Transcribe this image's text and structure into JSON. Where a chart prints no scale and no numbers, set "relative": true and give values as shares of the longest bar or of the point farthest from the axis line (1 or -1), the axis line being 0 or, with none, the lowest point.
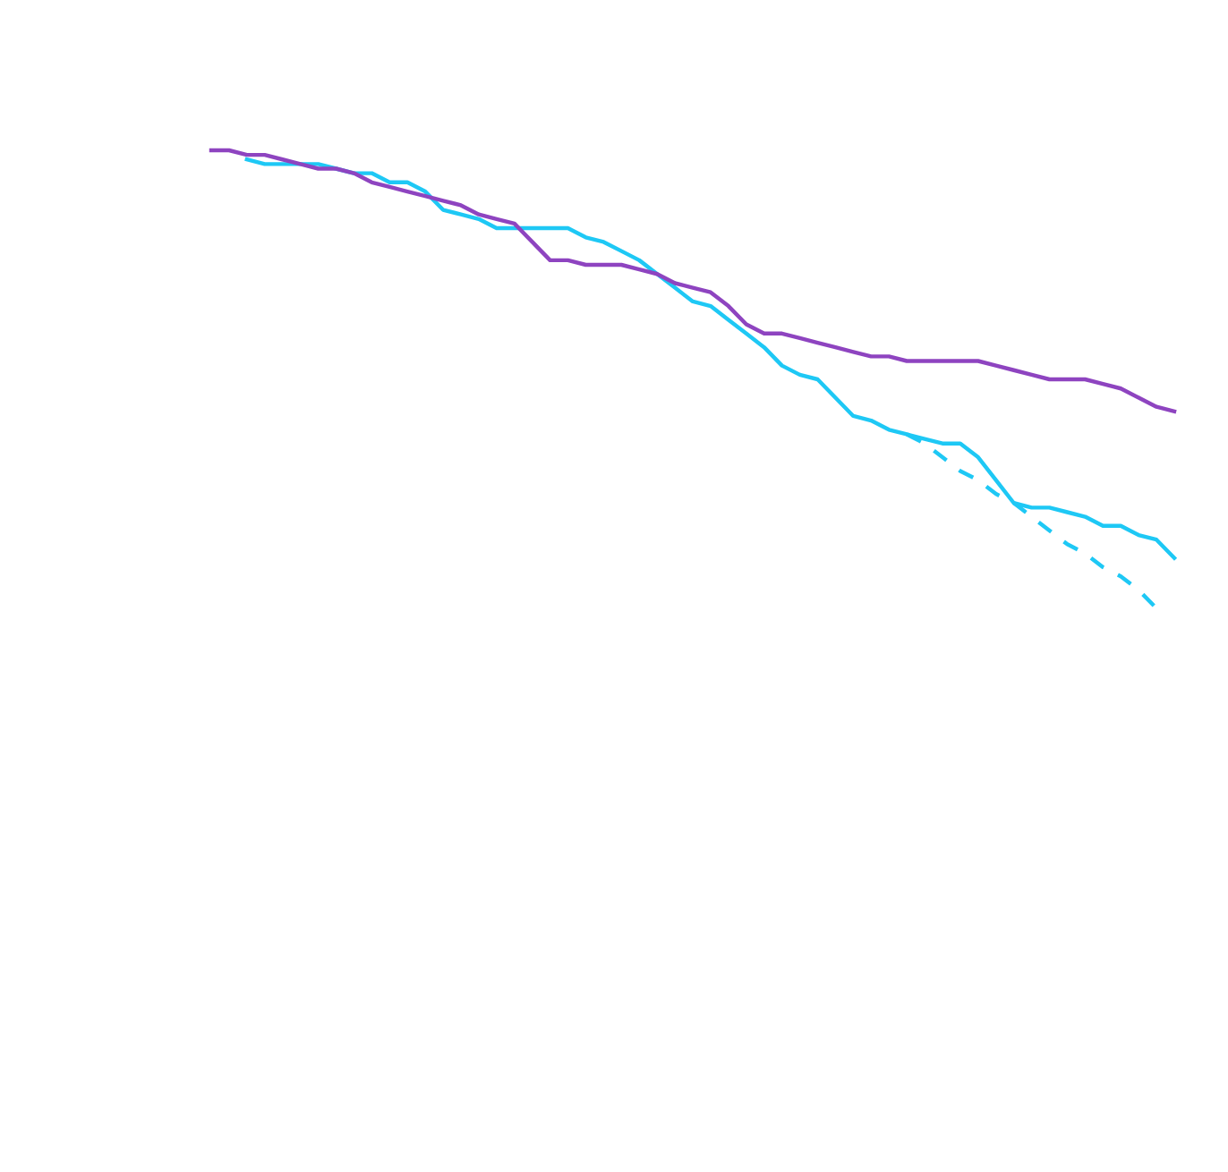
{
  "chart_data": {
    "type": "line",
    "relative": true,
    "categories": [
      null,
      null,
      null,
      null,
      null,
      null,
      null,
      null,
      null,
      null,
      null,
      null,
      null,
      null,
      null,
      null,
      null,
      null,
      null,
      null,
      null,
      null,
      null,
      null,
      null,
      null,
      null,
      null,
      null,
      null,
      null,
      null,
      null,
      null,
      null,
      null,
      null,
      null,
      null,
      null,
      null,
      null,
      null,
      null,
      null,
      null,
      null,
      null,
      null,
      null,
      null,
      null,
      null,
      null,
      null
    ],
    "series": [
      {
        "color": "#8e44c0",
        "line_style": "solid",
        "values": [
          1.0,
          1.0,
          0.99,
          0.99,
          0.98,
          0.97,
          0.96,
          0.96,
          0.95,
          0.93,
          0.92,
          0.91,
          0.9,
          0.89,
          0.88,
          0.86,
          0.85,
          0.84,
          0.8,
          0.76,
          0.76,
          0.75,
          0.75,
          0.75,
          0.74,
          0.73,
          0.71,
          0.7,
          0.69,
          0.66,
          0.62,
          0.6,
          0.6,
          0.59,
          0.58,
          0.57,
          0.56,
          0.55,
          0.55,
          0.54,
          0.54,
          0.54,
          0.54,
          0.54,
          0.53,
          0.52,
          0.51,
          0.5,
          0.5,
          0.5,
          0.49,
          0.48,
          0.46,
          0.44,
          0.43
        ]
      },
      {
        "color": "#1ec8f5",
        "line_style": "solid",
        "values": [
          null,
          null,
          0.98,
          0.97,
          0.97,
          0.97,
          0.97,
          0.96,
          0.95,
          0.95,
          0.93,
          0.93,
          0.91,
          0.87,
          0.86,
          0.85,
          0.83,
          0.83,
          0.83,
          0.83,
          0.83,
          0.81,
          0.8,
          0.78,
          0.76,
          0.73,
          0.7,
          0.67,
          0.66,
          0.63,
          0.6,
          0.57,
          0.53,
          0.51,
          0.5,
          0.46,
          0.42,
          0.41,
          0.39,
          0.38,
          0.37,
          0.36,
          0.36,
          0.33,
          0.28,
          0.23,
          0.22,
          0.22,
          0.21,
          0.2,
          0.18,
          0.18,
          0.16,
          0.15,
          0.11
        ]
      },
      {
        "color": "#1ec8f5",
        "line_style": "dashed",
        "values": [
          null,
          null,
          null,
          null,
          null,
          null,
          null,
          null,
          null,
          null,
          null,
          null,
          null,
          null,
          null,
          null,
          null,
          null,
          null,
          null,
          null,
          null,
          null,
          null,
          null,
          null,
          null,
          null,
          null,
          null,
          null,
          null,
          null,
          null,
          null,
          null,
          null,
          null,
          null,
          0.38,
          0.36,
          0.33,
          0.3,
          0.28,
          0.25,
          0.23,
          0.2,
          0.17,
          0.14,
          0.12,
          0.09,
          0.07,
          0.04,
          0.0,
          null
        ]
      }
    ]
  }
}
